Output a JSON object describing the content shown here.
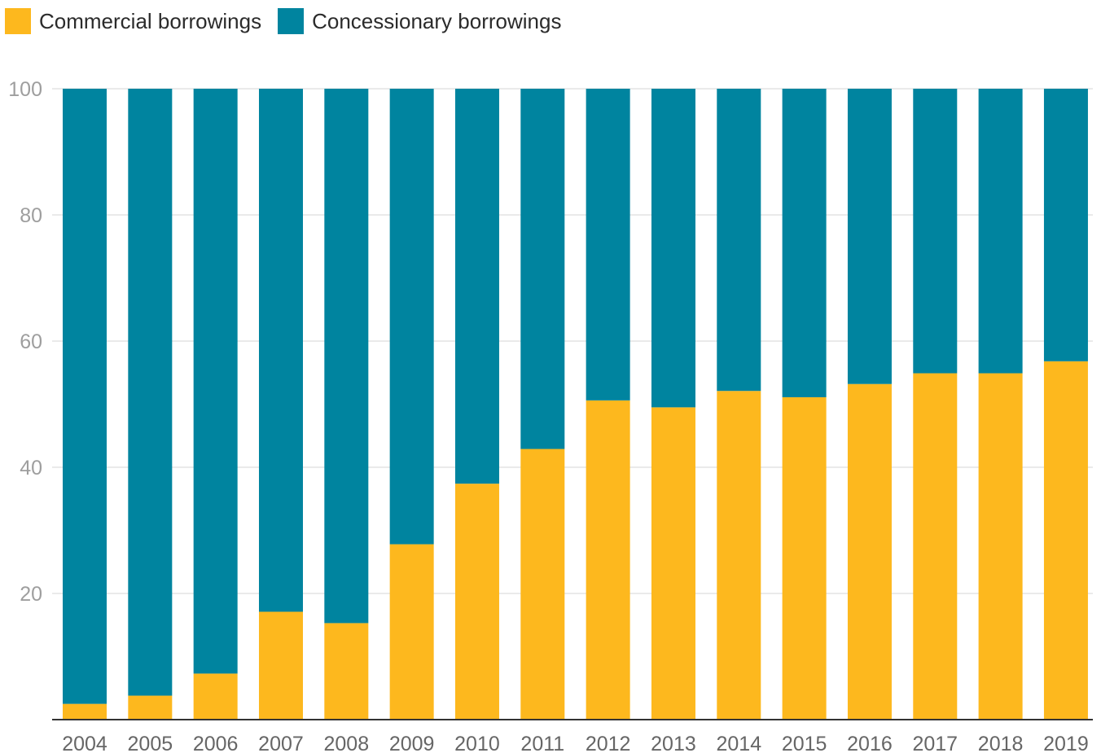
{
  "chart_data": {
    "type": "bar",
    "stacked": true,
    "categories": [
      "2004",
      "2005",
      "2006",
      "2007",
      "2008",
      "2009",
      "2010",
      "2011",
      "2012",
      "2013",
      "2014",
      "2015",
      "2016",
      "2017",
      "2018",
      "2019"
    ],
    "series": [
      {
        "name": "Commercial borrowings",
        "color": "#fdb81e",
        "values": [
          2.5,
          3.8,
          7.3,
          17.1,
          15.3,
          27.8,
          37.4,
          42.9,
          50.6,
          49.5,
          52.1,
          51.1,
          53.2,
          54.9,
          54.9,
          56.8
        ]
      },
      {
        "name": "Concessionary borrowings",
        "color": "#00849f",
        "values": [
          97.5,
          96.2,
          92.7,
          82.9,
          84.7,
          72.2,
          62.6,
          57.1,
          49.4,
          50.5,
          47.9,
          48.9,
          46.8,
          45.1,
          45.1,
          43.2
        ]
      }
    ],
    "ylim": [
      0,
      100
    ],
    "yticks": [
      20,
      40,
      60,
      80,
      100
    ],
    "title": "",
    "xlabel": "",
    "ylabel": "",
    "grid": true,
    "legend_position": "top-left"
  }
}
